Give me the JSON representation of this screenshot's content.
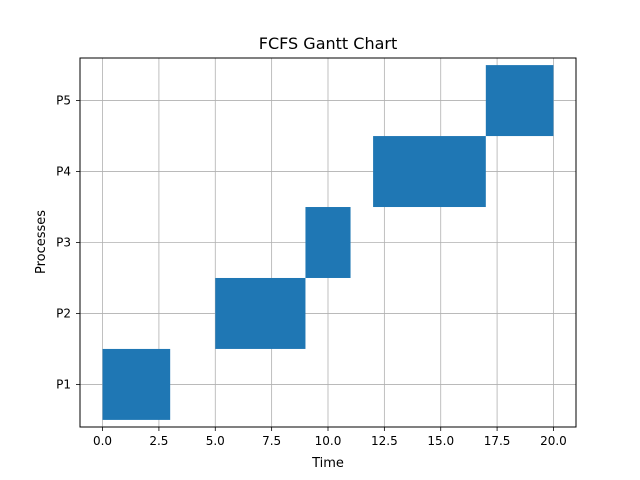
{
  "chart_data": {
    "type": "bar",
    "orientation": "horizontal",
    "title": "FCFS Gantt Chart",
    "xlabel": "Time",
    "ylabel": "Processes",
    "xlim": [
      -1,
      21
    ],
    "ylim": [
      0.4,
      5.6
    ],
    "x_ticks": [
      0.0,
      2.5,
      5.0,
      7.5,
      10.0,
      12.5,
      15.0,
      17.5,
      20.0
    ],
    "x_tick_labels": [
      "0.0",
      "2.5",
      "5.0",
      "7.5",
      "10.0",
      "12.5",
      "15.0",
      "17.5",
      "20.0"
    ],
    "categories": [
      "P1",
      "P2",
      "P3",
      "P4",
      "P5"
    ],
    "bars": [
      {
        "process": "P1",
        "start": 0,
        "end": 3
      },
      {
        "process": "P2",
        "start": 5,
        "end": 9
      },
      {
        "process": "P3",
        "start": 9,
        "end": 11
      },
      {
        "process": "P4",
        "start": 12,
        "end": 17
      },
      {
        "process": "P5",
        "start": 17,
        "end": 20
      }
    ],
    "grid": true,
    "bar_color": "#1f77b4"
  }
}
